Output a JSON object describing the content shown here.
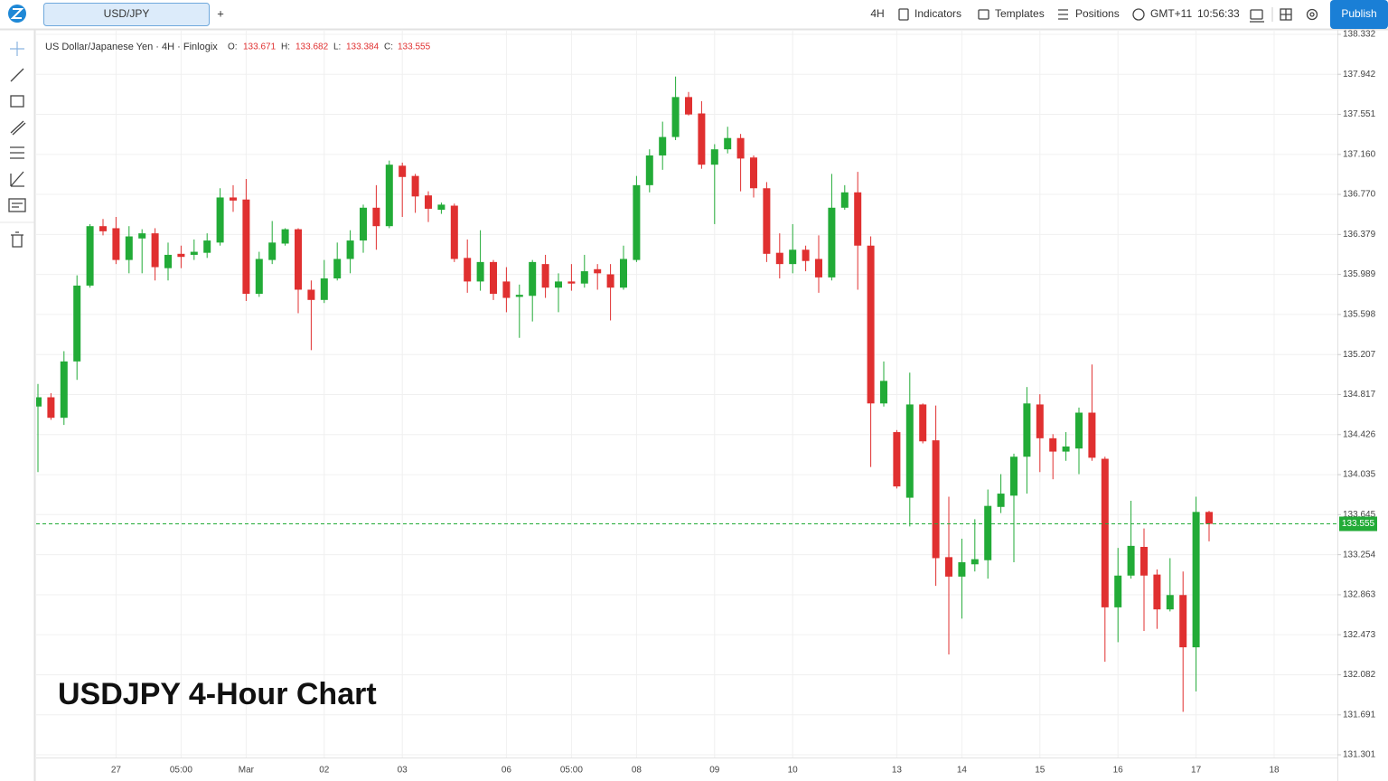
{
  "toolbar": {
    "symbol_tab": "USD/JPY",
    "add_tab": "+",
    "interval": "4H",
    "indicators": "Indicators",
    "templates": "Templates",
    "positions": "Positions",
    "timezone": "GMT+11",
    "clock": "10:56:33",
    "publish": "Publish"
  },
  "chart_data": {
    "type": "candlestick",
    "title": "US Dollar/Japanese Yen · 4H · Finlogix",
    "ohlc_labels": [
      "O:",
      "H:",
      "L:",
      "C:"
    ],
    "annotation": "USDJPY 4-Hour Chart",
    "categories": [
      null,
      null,
      null,
      null,
      null,
      null,
      "27",
      null,
      null,
      null,
      null,
      "05:00",
      null,
      null,
      null,
      null,
      "Mar",
      null,
      null,
      null,
      null,
      null,
      "02",
      null,
      null,
      null,
      null,
      null,
      "03",
      null,
      null,
      null,
      null,
      null,
      null,
      null,
      "06",
      null,
      null,
      null,
      null,
      "05:00",
      null,
      null,
      null,
      null,
      "08",
      null,
      null,
      null,
      null,
      null,
      "09",
      null,
      null,
      null,
      null,
      null,
      "10",
      null,
      null,
      null,
      null,
      null,
      null,
      null,
      "13",
      null,
      null,
      null,
      null,
      "14",
      null,
      null,
      null,
      null,
      null,
      "15",
      null,
      null,
      null,
      null,
      null,
      "16",
      null,
      null,
      null,
      null,
      null,
      "17",
      null,
      null,
      null,
      null,
      null,
      "18"
    ],
    "open": [
      134.7,
      134.79,
      134.59,
      135.14,
      135.88,
      136.46,
      136.44,
      136.13,
      136.34,
      136.39,
      136.05,
      136.19,
      136.18,
      136.2,
      136.3,
      136.74,
      136.72,
      135.8,
      136.13,
      136.29,
      136.43,
      135.84,
      135.74,
      135.95,
      136.14,
      136.32,
      136.64,
      136.46,
      137.05,
      136.95,
      136.76,
      136.62,
      136.66,
      136.15,
      135.92,
      136.11,
      135.92,
      135.77,
      135.78,
      136.09,
      135.86,
      135.92,
      135.9,
      136.04,
      135.99,
      135.86,
      136.13,
      136.86,
      137.15,
      137.33,
      137.72,
      137.56,
      137.06,
      137.21,
      137.32,
      137.13,
      136.83,
      136.2,
      136.09,
      136.23,
      136.14,
      135.96,
      136.64,
      136.79,
      136.27,
      134.73,
      134.45,
      133.81,
      134.72,
      134.37,
      133.23,
      133.04,
      133.16,
      133.2,
      133.72,
      133.83,
      134.21,
      134.72,
      134.39,
      134.26,
      134.29,
      134.64,
      134.19,
      132.74,
      133.05,
      133.33,
      133.06,
      132.72,
      132.86,
      132.35,
      133.671,
      null,
      null,
      null,
      null,
      null
    ],
    "high": [
      134.92,
      134.83,
      135.24,
      135.98,
      136.48,
      136.53,
      136.55,
      136.46,
      136.43,
      136.44,
      136.3,
      136.27,
      136.33,
      136.39,
      136.83,
      136.86,
      136.92,
      136.21,
      136.51,
      136.44,
      136.44,
      135.93,
      136.13,
      136.3,
      136.42,
      136.67,
      136.86,
      137.1,
      137.08,
      136.97,
      136.8,
      136.69,
      136.68,
      136.33,
      136.42,
      136.13,
      136.06,
      135.89,
      136.13,
      136.18,
      136.0,
      136.09,
      136.18,
      136.09,
      136.09,
      136.27,
      136.95,
      137.21,
      137.48,
      137.92,
      137.77,
      137.68,
      137.26,
      137.43,
      137.36,
      137.15,
      136.89,
      136.39,
      136.48,
      136.27,
      136.37,
      136.97,
      136.86,
      136.99,
      136.36,
      135.14,
      134.47,
      135.03,
      134.73,
      134.71,
      133.82,
      133.41,
      133.6,
      133.89,
      134.04,
      134.24,
      134.89,
      134.82,
      134.43,
      134.45,
      134.69,
      135.11,
      134.21,
      133.32,
      133.78,
      133.51,
      133.11,
      133.22,
      133.09,
      133.82,
      133.682,
      null,
      null,
      null,
      null,
      null
    ],
    "low": [
      134.06,
      134.57,
      134.52,
      134.96,
      135.86,
      136.37,
      136.09,
      136.0,
      136.0,
      135.93,
      135.93,
      136.05,
      136.13,
      136.15,
      136.27,
      136.6,
      135.73,
      135.77,
      136.09,
      136.27,
      135.61,
      135.25,
      135.71,
      135.93,
      136.0,
      136.2,
      136.23,
      136.44,
      136.55,
      136.59,
      136.5,
      136.58,
      136.11,
      135.81,
      135.83,
      135.74,
      135.62,
      135.37,
      135.53,
      135.76,
      135.62,
      135.83,
      135.86,
      135.84,
      135.54,
      135.84,
      136.11,
      136.79,
      137.01,
      137.3,
      137.54,
      137.02,
      136.48,
      137.17,
      136.8,
      136.74,
      136.11,
      135.95,
      136.0,
      136.02,
      135.81,
      135.93,
      136.62,
      135.84,
      134.11,
      134.7,
      133.9,
      133.53,
      134.34,
      132.95,
      132.28,
      132.63,
      133.09,
      133.02,
      133.66,
      133.18,
      133.85,
      134.06,
      133.99,
      134.17,
      134.04,
      134.17,
      132.21,
      132.4,
      133.02,
      132.51,
      132.53,
      132.7,
      131.72,
      131.92,
      133.384,
      null,
      null,
      null,
      null,
      null
    ],
    "close": [
      134.79,
      134.59,
      135.14,
      135.88,
      136.46,
      136.41,
      136.13,
      136.36,
      136.39,
      136.06,
      136.18,
      136.16,
      136.21,
      136.32,
      136.74,
      136.71,
      135.8,
      136.14,
      136.3,
      136.43,
      135.84,
      135.74,
      135.95,
      136.14,
      136.32,
      136.64,
      136.46,
      137.06,
      136.94,
      136.75,
      136.63,
      136.67,
      136.14,
      135.92,
      136.11,
      135.8,
      135.76,
      135.79,
      136.11,
      135.86,
      135.92,
      135.9,
      136.02,
      136.0,
      135.86,
      136.14,
      136.86,
      137.15,
      137.33,
      137.72,
      137.55,
      137.06,
      137.21,
      137.32,
      137.12,
      136.83,
      136.19,
      136.09,
      136.23,
      136.12,
      135.96,
      136.64,
      136.79,
      136.27,
      134.73,
      134.95,
      133.92,
      134.72,
      134.36,
      133.22,
      133.04,
      133.18,
      133.21,
      133.73,
      133.85,
      134.21,
      134.73,
      134.39,
      134.26,
      134.31,
      134.64,
      134.2,
      132.74,
      133.05,
      133.34,
      133.05,
      132.72,
      132.86,
      132.35,
      133.671,
      133.555,
      null,
      null,
      null,
      null,
      null
    ],
    "up_color": "#22ab37",
    "down_color": "#e03030",
    "ylim": [
      131.257,
      138.376
    ],
    "yticks": [
      131.301,
      131.691,
      132.082,
      132.473,
      132.863,
      133.254,
      133.645,
      134.035,
      134.426,
      134.817,
      135.207,
      135.598,
      135.989,
      136.379,
      {
        "value": 136.77,
        "label": "136.770"
      },
      {
        "value": 137.16,
        "label": "137.160"
      },
      137.551,
      137.942,
      138.332
    ],
    "grid": true
  }
}
